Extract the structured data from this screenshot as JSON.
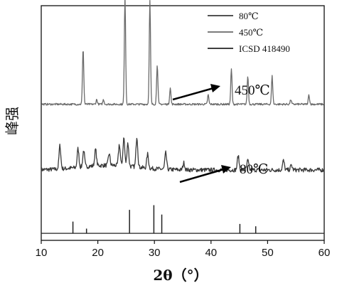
{
  "chart_data": {
    "type": "line",
    "xlabel": "2θ（°）",
    "ylabel": "峰强",
    "xlim": [
      10,
      60
    ],
    "x_ticks": [
      10,
      20,
      30,
      40,
      50,
      60
    ],
    "y_ticks_visible": false,
    "grid": false,
    "legend_position": "top-right",
    "series": [
      {
        "name": "80℃",
        "color": "#3a3a3a",
        "baseline": 0.3,
        "peaks": [
          {
            "x": 13.3,
            "y": 0.1
          },
          {
            "x": 16.5,
            "y": 0.08
          },
          {
            "x": 17.5,
            "y": 0.07
          },
          {
            "x": 19.6,
            "y": 0.07
          },
          {
            "x": 22.0,
            "y": 0.05
          },
          {
            "x": 23.8,
            "y": 0.09
          },
          {
            "x": 24.6,
            "y": 0.12
          },
          {
            "x": 25.3,
            "y": 0.1
          },
          {
            "x": 26.9,
            "y": 0.13
          },
          {
            "x": 28.8,
            "y": 0.06
          },
          {
            "x": 32.0,
            "y": 0.07
          },
          {
            "x": 35.2,
            "y": 0.03
          },
          {
            "x": 44.8,
            "y": 0.06
          },
          {
            "x": 46.5,
            "y": 0.04
          },
          {
            "x": 52.8,
            "y": 0.04
          },
          {
            "x": 54.2,
            "y": 0.02
          }
        ]
      },
      {
        "name": "450℃",
        "color": "#6a6a6a",
        "baseline": 0.58,
        "peaks": [
          {
            "x": 17.4,
            "y": 0.24
          },
          {
            "x": 19.8,
            "y": 0.02
          },
          {
            "x": 21.0,
            "y": 0.02
          },
          {
            "x": 24.8,
            "y": 0.46
          },
          {
            "x": 29.2,
            "y": 0.44
          },
          {
            "x": 30.5,
            "y": 0.17
          },
          {
            "x": 32.8,
            "y": 0.07
          },
          {
            "x": 39.5,
            "y": 0.04
          },
          {
            "x": 43.6,
            "y": 0.15
          },
          {
            "x": 46.5,
            "y": 0.12
          },
          {
            "x": 50.8,
            "y": 0.12
          },
          {
            "x": 54.1,
            "y": 0.02
          },
          {
            "x": 57.3,
            "y": 0.04
          }
        ]
      },
      {
        "name": "ICSD 418490",
        "color": "#222222",
        "type": "stick",
        "baseline": 0.03,
        "sticks": [
          {
            "x": 15.6,
            "y": 0.05
          },
          {
            "x": 18.0,
            "y": 0.02
          },
          {
            "x": 25.6,
            "y": 0.1
          },
          {
            "x": 29.9,
            "y": 0.12
          },
          {
            "x": 31.3,
            "y": 0.08
          },
          {
            "x": 45.1,
            "y": 0.04
          },
          {
            "x": 47.9,
            "y": 0.03
          }
        ]
      }
    ],
    "legend": {
      "entries": [
        "80℃",
        "450℃",
        "ICSD 418490"
      ]
    },
    "annotations": [
      {
        "text": "450℃",
        "target_series": "450℃"
      },
      {
        "text": "80℃",
        "target_series": "80℃"
      }
    ]
  }
}
